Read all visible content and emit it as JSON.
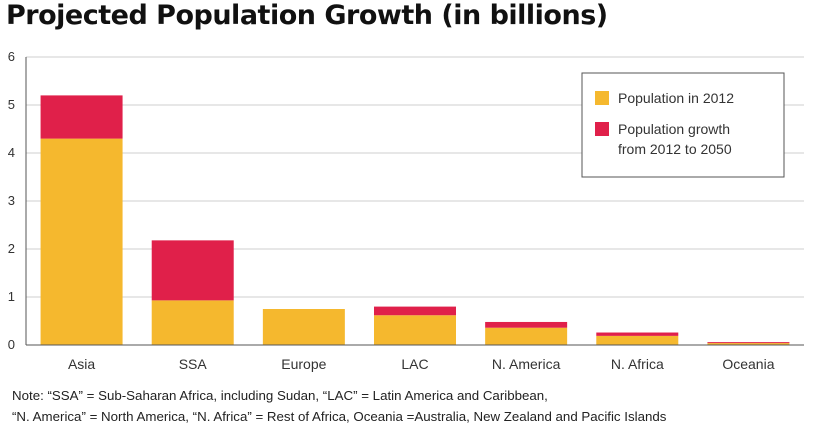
{
  "chart_data": {
    "type": "bar",
    "stacked": true,
    "title": "Projected Population Growth (in billions)",
    "categories": [
      "Asia",
      "SSA",
      "Europe",
      "LAC",
      "N. America",
      "N. Africa",
      "Oceania"
    ],
    "series": [
      {
        "name": "Population in 2012",
        "values": [
          4.3,
          0.93,
          0.75,
          0.62,
          0.36,
          0.19,
          0.04
        ]
      },
      {
        "name": "Population growth from 2012 to 2050",
        "values": [
          0.9,
          1.25,
          0.0,
          0.18,
          0.12,
          0.07,
          0.02
        ]
      }
    ],
    "ylim": [
      0,
      6
    ],
    "yticks": [
      "0",
      "1",
      "2",
      "3",
      "4",
      "5",
      "6"
    ],
    "grid": true,
    "legend_position": "top-right",
    "legend_lines": [
      [
        "Population in 2012"
      ],
      [
        "Population growth",
        "from 2012 to 2050"
      ]
    ],
    "colors": [
      "#F5B82E",
      "#E0204A"
    ]
  },
  "note": {
    "lines": [
      "Note: “SSA” = Sub-Saharan Africa, including Sudan, “LAC” = Latin America and Caribbean,",
      "“N. America” = North America, “N. Africa” = Rest of Africa, Oceania =Australia, New Zealand and Pacific Islands"
    ]
  }
}
